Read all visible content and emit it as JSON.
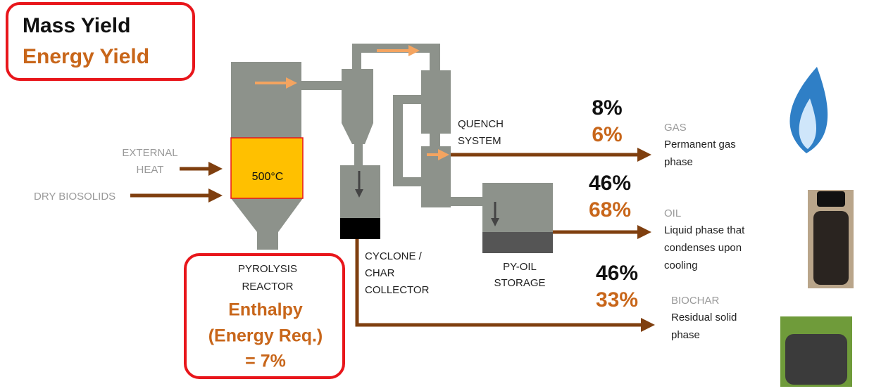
{
  "legend": {
    "mass_yield": "Mass Yield",
    "energy_yield": "Energy Yield"
  },
  "inputs": {
    "external_heat": [
      "EXTERNAL",
      "HEAT"
    ],
    "feed": "DRY BIOSOLIDS"
  },
  "reactor": {
    "temperature": "500°C",
    "label": [
      "PYROLYSIS",
      "REACTOR"
    ]
  },
  "enthalpy": [
    "Enthalpy",
    "(Energy Req.)",
    "= 7%"
  ],
  "units": {
    "cyclone": [
      "CYCLONE /",
      "CHAR",
      "COLLECTOR"
    ],
    "quench": [
      "QUENCH",
      "SYSTEM"
    ],
    "storage": [
      "PY-OIL",
      "STORAGE"
    ]
  },
  "products": [
    {
      "name": "GAS",
      "description": [
        "Permanent gas",
        "phase"
      ],
      "mass_yield": "8%",
      "energy_yield": "6%"
    },
    {
      "name": "OIL",
      "description": [
        "Liquid phase that",
        "condenses upon",
        "cooling"
      ],
      "mass_yield": "46%",
      "energy_yield": "68%"
    },
    {
      "name": "BIOCHAR",
      "description": [
        "Residual solid",
        "phase"
      ],
      "mass_yield": "46%",
      "energy_yield": "33%"
    }
  ]
}
